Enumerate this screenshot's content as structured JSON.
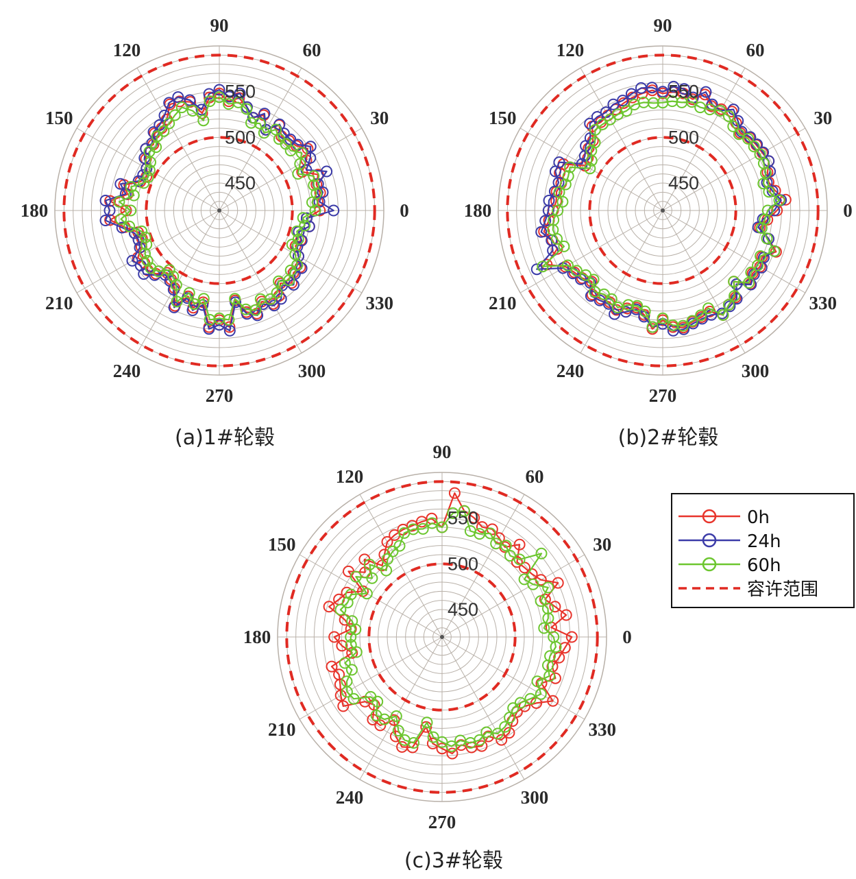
{
  "figure": {
    "legend": {
      "entries": [
        {
          "label": "0h",
          "color": "#e8342b",
          "style": "line-marker"
        },
        {
          "label": "24h",
          "color": "#3b3ba8",
          "style": "line-marker"
        },
        {
          "label": "60h",
          "color": "#6cc62f",
          "style": "line-marker"
        },
        {
          "label": "容许范围",
          "color": "#e8342b",
          "style": "dashed"
        }
      ]
    }
  },
  "colors": {
    "grid": "#b8b0a8",
    "tolerance": "#e02a22"
  },
  "chart_data": [
    {
      "type": "polar-line",
      "caption": "(a)1#轮毂",
      "angle_labels": [
        "90",
        "60",
        "30",
        "0",
        "330",
        "300",
        "270",
        "240",
        "210",
        "180",
        "150",
        "120"
      ],
      "angles": [
        90,
        60,
        30,
        0,
        330,
        300,
        270,
        240,
        210,
        180,
        150,
        120
      ],
      "r_ticks": [
        450,
        500,
        550
      ],
      "r_tick_labels": [
        "450",
        "500",
        "550"
      ],
      "rlim": [
        420,
        600
      ],
      "tolerance": [
        500,
        590
      ],
      "theta": [
        0,
        5,
        10,
        15,
        20,
        25,
        30,
        35,
        40,
        45,
        50,
        55,
        60,
        65,
        70,
        75,
        80,
        85,
        90,
        95,
        100,
        105,
        110,
        115,
        120,
        125,
        130,
        135,
        140,
        145,
        150,
        155,
        160,
        165,
        170,
        175,
        180,
        185,
        190,
        195,
        200,
        205,
        210,
        215,
        220,
        225,
        230,
        235,
        240,
        245,
        250,
        255,
        260,
        265,
        270,
        275,
        280,
        285,
        290,
        295,
        300,
        305,
        310,
        315,
        320,
        325,
        330,
        335,
        340,
        345,
        350,
        355
      ],
      "series": [
        {
          "name": "0h",
          "values": [
            530,
            528,
            532,
            530,
            535,
            520,
            530,
            538,
            530,
            528,
            526,
            534,
            522,
            535,
            528,
            537,
            545,
            540,
            548,
            544,
            528,
            543,
            547,
            548,
            535,
            530,
            530,
            522,
            525,
            518,
            512,
            508,
            512,
            528,
            522,
            540,
            522,
            540,
            525,
            512,
            510,
            514,
            523,
            520,
            522,
            518,
            509,
            512,
            518,
            535,
            520,
            530,
            522,
            548,
            540,
            548,
            520,
            535,
            540,
            530,
            538,
            534,
            524,
            532,
            526,
            528,
            520,
            512,
            515,
            510,
            520,
            516
          ]
        },
        {
          "name": "24h",
          "values": [
            545,
            530,
            535,
            532,
            545,
            525,
            535,
            542,
            532,
            530,
            530,
            535,
            522,
            537,
            528,
            537,
            550,
            545,
            552,
            548,
            532,
            545,
            552,
            550,
            540,
            534,
            532,
            524,
            525,
            520,
            512,
            512,
            514,
            532,
            524,
            545,
            540,
            545,
            528,
            516,
            514,
            516,
            530,
            525,
            528,
            520,
            512,
            514,
            520,
            537,
            522,
            533,
            525,
            550,
            545,
            552,
            522,
            537,
            542,
            533,
            540,
            538,
            527,
            535,
            528,
            530,
            520,
            514,
            516,
            510,
            520,
            516
          ]
        },
        {
          "name": "60h",
          "values": [
            525,
            522,
            528,
            527,
            530,
            515,
            522,
            530,
            522,
            523,
            522,
            528,
            518,
            525,
            522,
            535,
            540,
            537,
            544,
            540,
            520,
            533,
            540,
            535,
            530,
            526,
            526,
            518,
            520,
            512,
            508,
            506,
            508,
            520,
            515,
            530,
            517,
            528,
            520,
            508,
            506,
            508,
            514,
            516,
            518,
            514,
            505,
            508,
            514,
            530,
            516,
            526,
            518,
            540,
            538,
            540,
            518,
            532,
            536,
            527,
            532,
            530,
            521,
            528,
            522,
            524,
            516,
            508,
            512,
            508,
            515,
            512
          ]
        }
      ]
    },
    {
      "type": "polar-line",
      "caption": "(b)2#轮毂",
      "angle_labels": [
        "90",
        "60",
        "30",
        "0",
        "330",
        "300",
        "270",
        "240",
        "210",
        "180",
        "150",
        "120"
      ],
      "angles": [
        90,
        60,
        30,
        0,
        330,
        300,
        270,
        240,
        210,
        180,
        150,
        120
      ],
      "r_ticks": [
        450,
        500,
        550
      ],
      "r_tick_labels": [
        "450",
        "500",
        "550"
      ],
      "rlim": [
        420,
        600
      ],
      "tolerance": [
        500,
        590
      ],
      "theta": [
        0,
        5,
        10,
        15,
        20,
        25,
        30,
        35,
        40,
        45,
        50,
        55,
        60,
        65,
        70,
        75,
        80,
        85,
        90,
        95,
        100,
        105,
        110,
        115,
        120,
        125,
        130,
        135,
        140,
        145,
        150,
        155,
        160,
        165,
        170,
        175,
        180,
        185,
        190,
        195,
        200,
        205,
        210,
        215,
        220,
        225,
        230,
        235,
        240,
        245,
        250,
        255,
        260,
        265,
        270,
        275,
        280,
        285,
        290,
        295,
        300,
        305,
        310,
        315,
        320,
        325,
        330,
        335,
        340,
        345,
        350,
        355
      ],
      "series": [
        {
          "name": "0h",
          "values": [
            545,
            555,
            545,
            540,
            542,
            548,
            546,
            545,
            544,
            540,
            545,
            552,
            548,
            546,
            555,
            546,
            550,
            550,
            548,
            552,
            550,
            548,
            545,
            542,
            540,
            538,
            540,
            528,
            526,
            520,
            518,
            540,
            540,
            535,
            538,
            537,
            540,
            545,
            552,
            545,
            543,
            560,
            543,
            538,
            535,
            530,
            540,
            538,
            536,
            540,
            534,
            530,
            536,
            550,
            540,
            548,
            550,
            546,
            544,
            542,
            552,
            546,
            544,
            530,
            545,
            540,
            543,
            540,
            552,
            540,
            528,
            535
          ]
        },
        {
          "name": "24h",
          "values": [
            542,
            550,
            542,
            538,
            545,
            548,
            547,
            546,
            545,
            542,
            548,
            555,
            546,
            548,
            558,
            548,
            555,
            556,
            550,
            555,
            556,
            552,
            548,
            548,
            544,
            545,
            544,
            532,
            530,
            524,
            522,
            545,
            545,
            538,
            540,
            545,
            545,
            549,
            555,
            546,
            548,
            572,
            546,
            540,
            537,
            532,
            542,
            540,
            538,
            545,
            538,
            532,
            538,
            548,
            544,
            552,
            552,
            548,
            546,
            546,
            550,
            548,
            546,
            534,
            546,
            542,
            545,
            542,
            550,
            540,
            526,
            530
          ]
        },
        {
          "name": "60h",
          "values": [
            535,
            548,
            538,
            534,
            540,
            542,
            543,
            542,
            542,
            538,
            540,
            546,
            546,
            542,
            540,
            543,
            540,
            540,
            538,
            538,
            540,
            540,
            536,
            536,
            535,
            535,
            535,
            525,
            522,
            515,
            512,
            532,
            530,
            530,
            535,
            530,
            535,
            540,
            542,
            540,
            535,
            565,
            540,
            535,
            530,
            527,
            536,
            532,
            532,
            537,
            530,
            528,
            532,
            548,
            538,
            546,
            548,
            545,
            542,
            538,
            552,
            546,
            542,
            530,
            543,
            538,
            540,
            538,
            550,
            538,
            530,
            532
          ]
        }
      ]
    },
    {
      "type": "polar-line",
      "caption": "(c)3#轮毂",
      "angle_labels": [
        "90",
        "60",
        "30",
        "0",
        "330",
        "300",
        "270",
        "240",
        "210",
        "180",
        "150",
        "120"
      ],
      "angles": [
        90,
        60,
        30,
        0,
        330,
        300,
        270,
        240,
        210,
        180,
        150,
        120
      ],
      "r_ticks": [
        450,
        500,
        550
      ],
      "r_tick_labels": [
        "450",
        "500",
        "550"
      ],
      "rlim": [
        420,
        600
      ],
      "tolerance": [
        500,
        590
      ],
      "theta": [
        0,
        5,
        10,
        15,
        20,
        25,
        30,
        35,
        40,
        45,
        50,
        55,
        60,
        65,
        70,
        75,
        80,
        85,
        90,
        95,
        100,
        105,
        110,
        115,
        120,
        125,
        130,
        135,
        140,
        145,
        150,
        155,
        160,
        165,
        170,
        175,
        180,
        185,
        190,
        195,
        200,
        205,
        210,
        215,
        220,
        225,
        230,
        235,
        240,
        245,
        250,
        255,
        260,
        265,
        270,
        275,
        280,
        285,
        290,
        295,
        300,
        305,
        310,
        315,
        320,
        325,
        330,
        335,
        340,
        345,
        350,
        355
      ],
      "series": [
        {
          "name": "0h",
          "values": [
            562,
            540,
            558,
            548,
            540,
            560,
            545,
            540,
            538,
            536,
            552,
            540,
            545,
            550,
            548,
            555,
            560,
            578,
            540,
            550,
            548,
            546,
            545,
            543,
            540,
            530,
            522,
            540,
            530,
            545,
            520,
            535,
            540,
            548,
            528,
            520,
            538,
            530,
            520,
            545,
            540,
            543,
            548,
            552,
            530,
            525,
            538,
            538,
            525,
            540,
            548,
            545,
            520,
            537,
            542,
            548,
            540,
            545,
            547,
            540,
            550,
            548,
            540,
            536,
            538,
            546,
            560,
            540,
            552,
            545,
            550,
            555
          ]
        },
        {
          "name": "24h",
          "values": []
        },
        {
          "name": "60h",
          "values": [
            542,
            532,
            538,
            540,
            535,
            548,
            535,
            530,
            562,
            540,
            536,
            542,
            538,
            545,
            540,
            540,
            560,
            556,
            540,
            545,
            540,
            542,
            541,
            530,
            528,
            524,
            515,
            532,
            520,
            535,
            515,
            530,
            530,
            535,
            520,
            515,
            520,
            520,
            515,
            530,
            525,
            535,
            540,
            538,
            522,
            520,
            532,
            530,
            520,
            533,
            540,
            540,
            515,
            530,
            535,
            540,
            535,
            540,
            540,
            535,
            542,
            540,
            535,
            530,
            532,
            538,
            545,
            535,
            545,
            540,
            540,
            545
          ]
        }
      ]
    }
  ]
}
